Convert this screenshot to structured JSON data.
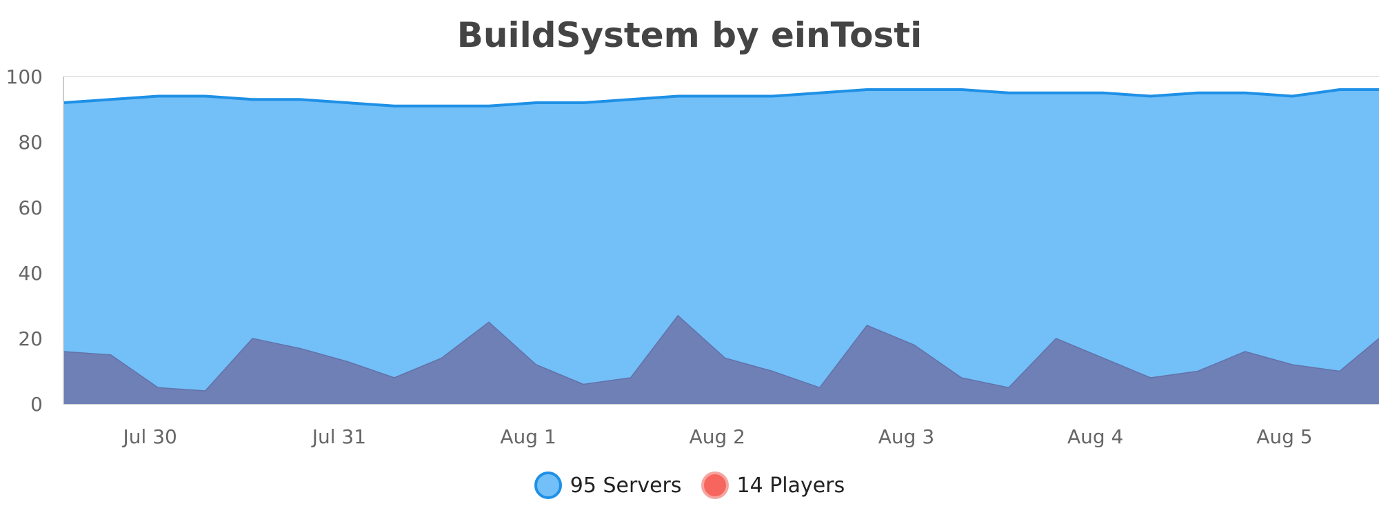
{
  "chart_data": {
    "type": "area",
    "title": "BuildSystem by einTosti",
    "xlabel": "",
    "ylabel": "",
    "ylim": [
      0,
      100
    ],
    "y_ticks": [
      0,
      20,
      40,
      60,
      80,
      100
    ],
    "x_ticks": [
      "Jul 30",
      "Jul 31",
      "Aug 1",
      "Aug 2",
      "Aug 3",
      "Aug 4",
      "Aug 5"
    ],
    "x_range": [
      "2020-07-29T13:00",
      "2020-08-05T12:00"
    ],
    "grid": true,
    "legend_position": "bottom-center",
    "series": [
      {
        "name": "Servers",
        "legend_label": "95 Servers",
        "color": "#1e90e6",
        "fill": "#73bff7",
        "x": [
          "2020-07-29T13:00",
          "2020-07-29T19:00",
          "2020-07-30T01:00",
          "2020-07-30T07:00",
          "2020-07-30T13:00",
          "2020-07-30T19:00",
          "2020-07-31T01:00",
          "2020-07-31T07:00",
          "2020-07-31T13:00",
          "2020-07-31T19:00",
          "2020-08-01T01:00",
          "2020-08-01T07:00",
          "2020-08-01T13:00",
          "2020-08-01T19:00",
          "2020-08-02T01:00",
          "2020-08-02T07:00",
          "2020-08-02T13:00",
          "2020-08-02T19:00",
          "2020-08-03T01:00",
          "2020-08-03T07:00",
          "2020-08-03T13:00",
          "2020-08-03T19:00",
          "2020-08-04T01:00",
          "2020-08-04T07:00",
          "2020-08-04T13:00",
          "2020-08-04T19:00",
          "2020-08-05T01:00",
          "2020-08-05T07:00",
          "2020-08-05T12:00"
        ],
        "values": [
          92,
          93,
          94,
          94,
          93,
          93,
          92,
          91,
          91,
          91,
          92,
          92,
          93,
          94,
          94,
          94,
          95,
          96,
          96,
          96,
          95,
          95,
          95,
          94,
          95,
          95,
          94,
          96,
          96
        ]
      },
      {
        "name": "Players",
        "legend_label": "14 Players",
        "color": "#f7665e",
        "fill": "#6f80b7",
        "x": [
          "2020-07-29T13:00",
          "2020-07-29T19:00",
          "2020-07-30T01:00",
          "2020-07-30T07:00",
          "2020-07-30T13:00",
          "2020-07-30T19:00",
          "2020-07-31T01:00",
          "2020-07-31T07:00",
          "2020-07-31T13:00",
          "2020-07-31T19:00",
          "2020-08-01T01:00",
          "2020-08-01T07:00",
          "2020-08-01T13:00",
          "2020-08-01T19:00",
          "2020-08-02T01:00",
          "2020-08-02T07:00",
          "2020-08-02T13:00",
          "2020-08-02T19:00",
          "2020-08-03T01:00",
          "2020-08-03T07:00",
          "2020-08-03T13:00",
          "2020-08-03T19:00",
          "2020-08-04T01:00",
          "2020-08-04T07:00",
          "2020-08-04T13:00",
          "2020-08-04T19:00",
          "2020-08-05T01:00",
          "2020-08-05T07:00",
          "2020-08-05T12:00"
        ],
        "values": [
          16,
          15,
          5,
          4,
          20,
          17,
          13,
          8,
          14,
          25,
          12,
          6,
          8,
          27,
          14,
          10,
          5,
          24,
          18,
          8,
          5,
          20,
          14,
          8,
          10,
          16,
          12,
          10,
          20
        ]
      }
    ]
  }
}
